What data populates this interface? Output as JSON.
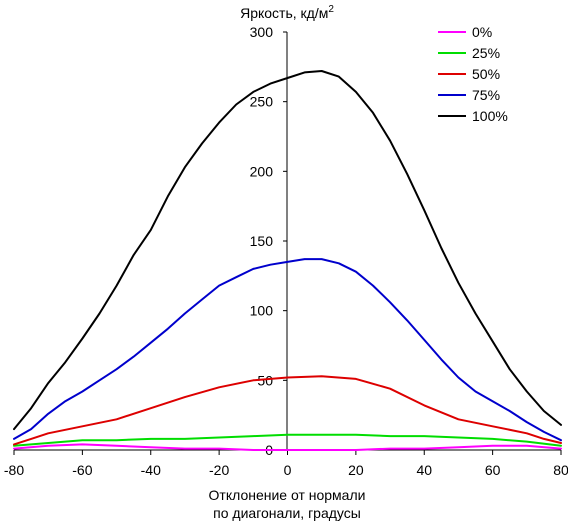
{
  "chart_data": {
    "type": "line",
    "title": "",
    "ylabel_base": "Яркость, кд/м",
    "ylabel_sup": "2",
    "xlabel_line1": "Отклонение от нормали",
    "xlabel_line2": "по диагонали, градусы",
    "xlim": [
      -80,
      80
    ],
    "ylim": [
      0,
      300
    ],
    "x_ticks": [
      -80,
      -60,
      -40,
      -20,
      0,
      20,
      40,
      60,
      80
    ],
    "y_ticks": [
      0,
      50,
      100,
      150,
      200,
      250,
      300
    ],
    "legend_position": "top-right",
    "grid": false,
    "series": [
      {
        "name": "0%",
        "color": "#ff00ff",
        "points": [
          [
            -80,
            1
          ],
          [
            -70,
            3
          ],
          [
            -60,
            4
          ],
          [
            -50,
            3
          ],
          [
            -40,
            2
          ],
          [
            -30,
            1
          ],
          [
            -20,
            1
          ],
          [
            -10,
            0
          ],
          [
            0,
            0
          ],
          [
            10,
            0
          ],
          [
            20,
            0
          ],
          [
            30,
            1
          ],
          [
            40,
            1
          ],
          [
            50,
            2
          ],
          [
            60,
            3
          ],
          [
            70,
            3
          ],
          [
            80,
            1
          ]
        ]
      },
      {
        "name": "25%",
        "color": "#00dd00",
        "points": [
          [
            -80,
            3
          ],
          [
            -70,
            5
          ],
          [
            -60,
            7
          ],
          [
            -50,
            7
          ],
          [
            -40,
            8
          ],
          [
            -30,
            8
          ],
          [
            -20,
            9
          ],
          [
            -10,
            10
          ],
          [
            0,
            11
          ],
          [
            10,
            11
          ],
          [
            20,
            11
          ],
          [
            30,
            10
          ],
          [
            40,
            10
          ],
          [
            50,
            9
          ],
          [
            60,
            8
          ],
          [
            70,
            6
          ],
          [
            80,
            3
          ]
        ]
      },
      {
        "name": "50%",
        "color": "#dd0000",
        "points": [
          [
            -80,
            4
          ],
          [
            -75,
            8
          ],
          [
            -70,
            12
          ],
          [
            -60,
            17
          ],
          [
            -50,
            22
          ],
          [
            -40,
            30
          ],
          [
            -30,
            38
          ],
          [
            -20,
            45
          ],
          [
            -10,
            50
          ],
          [
            0,
            52
          ],
          [
            10,
            53
          ],
          [
            20,
            51
          ],
          [
            30,
            44
          ],
          [
            40,
            32
          ],
          [
            50,
            22
          ],
          [
            60,
            17
          ],
          [
            70,
            12
          ],
          [
            75,
            8
          ],
          [
            80,
            5
          ]
        ]
      },
      {
        "name": "75%",
        "color": "#0000cc",
        "points": [
          [
            -80,
            8
          ],
          [
            -75,
            15
          ],
          [
            -70,
            26
          ],
          [
            -65,
            35
          ],
          [
            -60,
            42
          ],
          [
            -55,
            50
          ],
          [
            -50,
            58
          ],
          [
            -45,
            67
          ],
          [
            -40,
            77
          ],
          [
            -35,
            87
          ],
          [
            -30,
            98
          ],
          [
            -25,
            108
          ],
          [
            -20,
            118
          ],
          [
            -15,
            124
          ],
          [
            -10,
            130
          ],
          [
            -5,
            133
          ],
          [
            0,
            135
          ],
          [
            5,
            137
          ],
          [
            10,
            137
          ],
          [
            15,
            134
          ],
          [
            20,
            128
          ],
          [
            25,
            118
          ],
          [
            30,
            106
          ],
          [
            35,
            93
          ],
          [
            40,
            79
          ],
          [
            45,
            65
          ],
          [
            50,
            52
          ],
          [
            55,
            42
          ],
          [
            60,
            35
          ],
          [
            65,
            28
          ],
          [
            70,
            20
          ],
          [
            75,
            13
          ],
          [
            80,
            7
          ]
        ]
      },
      {
        "name": "100%",
        "color": "#000000",
        "points": [
          [
            -80,
            15
          ],
          [
            -75,
            30
          ],
          [
            -70,
            48
          ],
          [
            -65,
            63
          ],
          [
            -60,
            80
          ],
          [
            -55,
            98
          ],
          [
            -50,
            118
          ],
          [
            -45,
            140
          ],
          [
            -40,
            158
          ],
          [
            -35,
            182
          ],
          [
            -30,
            203
          ],
          [
            -25,
            220
          ],
          [
            -20,
            235
          ],
          [
            -15,
            248
          ],
          [
            -10,
            257
          ],
          [
            -5,
            263
          ],
          [
            0,
            267
          ],
          [
            5,
            271
          ],
          [
            10,
            272
          ],
          [
            15,
            268
          ],
          [
            20,
            257
          ],
          [
            25,
            242
          ],
          [
            30,
            222
          ],
          [
            35,
            198
          ],
          [
            40,
            172
          ],
          [
            45,
            145
          ],
          [
            50,
            120
          ],
          [
            55,
            98
          ],
          [
            60,
            78
          ],
          [
            65,
            58
          ],
          [
            70,
            42
          ],
          [
            75,
            28
          ],
          [
            80,
            18
          ]
        ]
      }
    ]
  }
}
